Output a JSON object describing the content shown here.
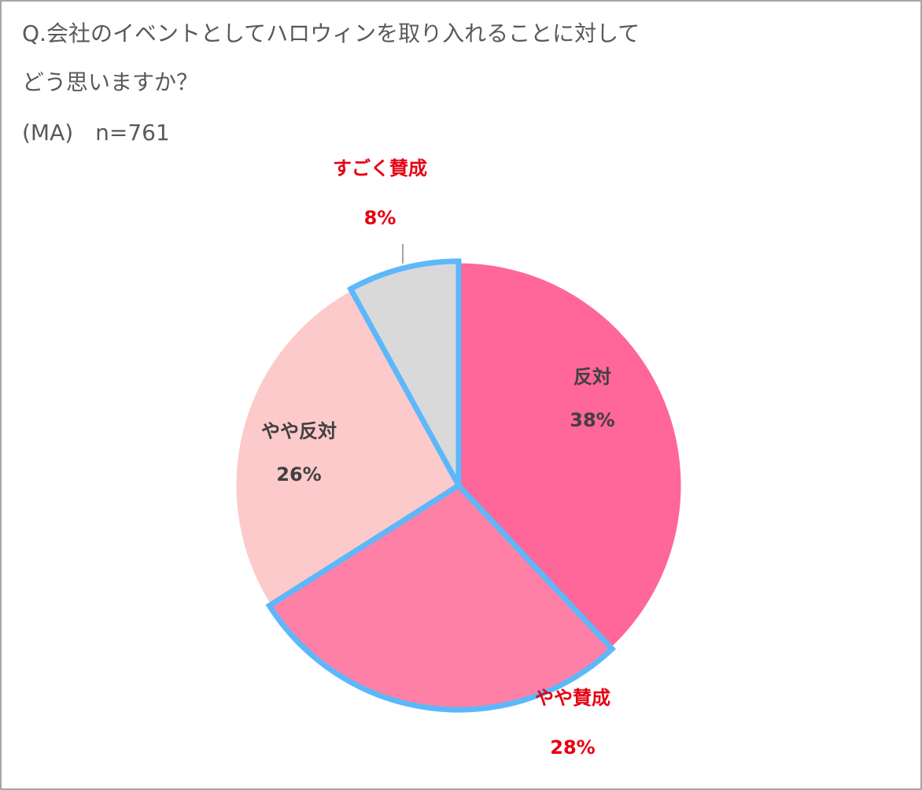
{
  "chart_data": {
    "type": "pie",
    "title": [
      "Q.会社のイベントとしてハロウィンを取り入れることに対して",
      "どう思いますか？"
    ],
    "subtitle": "(MA)　n=761",
    "categories": [
      "反対",
      "やや賛成",
      "やや反対",
      "すごく賛成"
    ],
    "values": [
      38,
      28,
      26,
      8
    ],
    "value_labels": [
      "38%",
      "28%",
      "26%",
      "8%"
    ],
    "colors": [
      "#ff6699",
      "#ff80a6",
      "#fccaca",
      "#d9d9d9"
    ],
    "highlight": [
      false,
      true,
      false,
      true
    ],
    "highlight_color": "#5cb8fa",
    "label_color": "#404040",
    "highlight_label_color": "#e60012"
  }
}
